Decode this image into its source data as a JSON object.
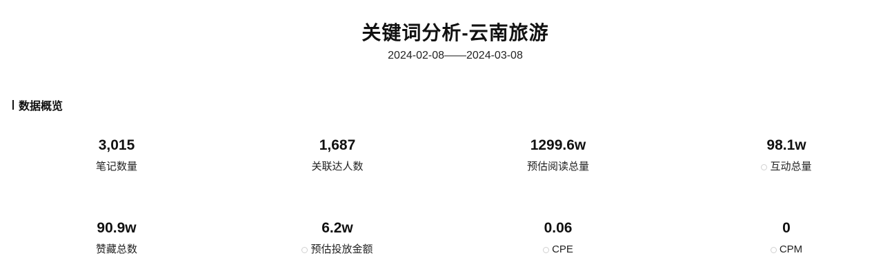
{
  "header": {
    "title": "关键词分析-云南旅游",
    "date_range": "2024-02-08——2024-03-08"
  },
  "section": {
    "title": "数据概览"
  },
  "metrics": [
    {
      "value": "3,015",
      "label": "笔记数量"
    },
    {
      "value": "1,687",
      "label": "关联达人数"
    },
    {
      "value": "1299.6w",
      "label": "预估阅读总量"
    },
    {
      "value": "98.1w",
      "label": "互动总量",
      "icon": "info-icon"
    },
    {
      "value": "90.9w",
      "label": "赞藏总数"
    },
    {
      "value": "6.2w",
      "label": "预估投放金额",
      "icon": "info-icon"
    },
    {
      "value": "0.06",
      "label": "CPE",
      "icon": "info-icon"
    },
    {
      "value": "0",
      "label": "CPM",
      "icon": "info-icon"
    }
  ]
}
